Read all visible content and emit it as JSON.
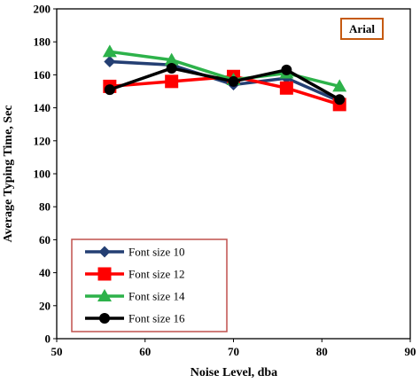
{
  "chart_data": {
    "type": "line",
    "xlabel": "Noise Level, dba",
    "ylabel": "Average Typing  Time, Sec",
    "xlim": [
      50,
      90
    ],
    "ylim": [
      0,
      200
    ],
    "x_ticks": [
      "50",
      "60",
      "70",
      "80",
      "90"
    ],
    "y_ticks": [
      "0",
      "20",
      "40",
      "60",
      "80",
      "100",
      "120",
      "140",
      "160",
      "180",
      "200"
    ],
    "grid": false,
    "legend_position": "bottom-left",
    "annotation": "Arial",
    "x": [
      56,
      63,
      70,
      76,
      82
    ],
    "series": [
      {
        "name": "Font size 10",
        "color": "#243F73",
        "marker": "diamond",
        "values": [
          168,
          166,
          154,
          158,
          144
        ]
      },
      {
        "name": "Font size 12",
        "color": "#FF0000",
        "marker": "square",
        "values": [
          153,
          156,
          159,
          152,
          142
        ]
      },
      {
        "name": "Font size 14",
        "color": "#2DB24A",
        "marker": "triangle",
        "values": [
          174,
          169,
          157,
          161,
          153
        ]
      },
      {
        "name": "Font size 16",
        "color": "#000000",
        "marker": "circle",
        "values": [
          151,
          164,
          156,
          163,
          145
        ]
      }
    ],
    "annotation_border_color": "#C55A11",
    "legend_border_color": "#C0504D"
  }
}
